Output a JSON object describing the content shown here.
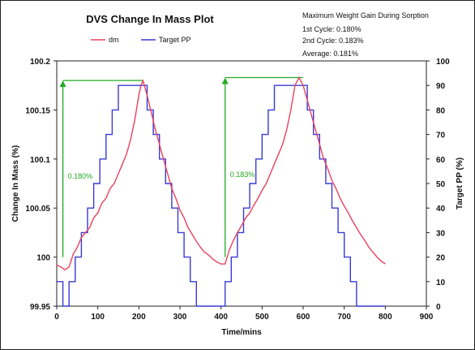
{
  "chart_data": {
    "type": "line",
    "title": "DVS Change In Mass Plot",
    "xlabel": "Time/mins",
    "ylabel_left": "Change In Mass (%)",
    "ylabel_right": "Target PP (%)",
    "xlim": [
      0,
      900
    ],
    "ylim_left": [
      99.95,
      100.2
    ],
    "ylim_right": [
      0,
      100
    ],
    "x_ticks": [
      "0",
      "100",
      "200",
      "300",
      "400",
      "500",
      "600",
      "700",
      "800",
      "900"
    ],
    "y_left_ticks": [
      "99.95",
      "100",
      "100.05",
      "100.1",
      "100.15",
      "100.2"
    ],
    "y_right_ticks": [
      "0",
      "10",
      "20",
      "30",
      "40",
      "50",
      "60",
      "70",
      "80",
      "90",
      "100"
    ],
    "legend": {
      "position": "top-left"
    },
    "colors": {
      "dm": "#e8415f",
      "target": "#3a3ad6",
      "annotation": "#22aa22"
    },
    "info_lines": [
      "Maximum Weight Gain During Sorption",
      "1st Cycle: 0.180%",
      "2nd Cycle: 0.183%",
      "Average: 0.181%"
    ],
    "annotations": [
      {
        "label": "0.180%",
        "x": 15,
        "y_low": 100.0,
        "y_high": 100.18
      },
      {
        "label": "0.183%",
        "x": 410,
        "y_low": 100.0,
        "y_high": 100.183
      }
    ],
    "series": [
      {
        "name": "dm",
        "axis": "left",
        "x": [
          0,
          10,
          20,
          30,
          40,
          50,
          60,
          70,
          80,
          90,
          100,
          110,
          120,
          130,
          140,
          150,
          160,
          170,
          180,
          190,
          200,
          205,
          210,
          220,
          230,
          240,
          250,
          260,
          270,
          280,
          290,
          300,
          310,
          320,
          330,
          340,
          350,
          360,
          370,
          380,
          390,
          400,
          410,
          420,
          430,
          440,
          450,
          460,
          470,
          480,
          490,
          500,
          510,
          520,
          530,
          540,
          550,
          560,
          570,
          580,
          590,
          600,
          610,
          620,
          630,
          640,
          650,
          660,
          670,
          680,
          690,
          700,
          710,
          720,
          730,
          740,
          750,
          760,
          770,
          780,
          790,
          800
        ],
        "y": [
          99.992,
          99.99,
          99.987,
          99.99,
          100.003,
          100.01,
          100.02,
          100.025,
          100.03,
          100.04,
          100.045,
          100.055,
          100.06,
          100.07,
          100.075,
          100.085,
          100.095,
          100.105,
          100.12,
          100.14,
          100.165,
          100.175,
          100.18,
          100.165,
          100.148,
          100.13,
          100.115,
          100.1,
          100.085,
          100.07,
          100.06,
          100.048,
          100.04,
          100.03,
          100.023,
          100.016,
          100.01,
          100.005,
          100.002,
          99.998,
          99.995,
          99.993,
          99.993,
          100.007,
          100.017,
          100.025,
          100.032,
          100.04,
          100.045,
          100.053,
          100.06,
          100.068,
          100.075,
          100.085,
          100.095,
          100.105,
          100.115,
          100.13,
          100.15,
          100.175,
          100.183,
          100.175,
          100.16,
          100.145,
          100.13,
          100.115,
          100.1,
          100.09,
          100.078,
          100.07,
          100.06,
          100.052,
          100.045,
          100.037,
          100.03,
          100.023,
          100.017,
          100.01,
          100.005,
          100.0,
          99.996,
          99.993
        ]
      },
      {
        "name": "Target PP",
        "axis": "right",
        "x": [
          0,
          15,
          15,
          30,
          30,
          45,
          45,
          60,
          60,
          75,
          75,
          90,
          90,
          105,
          105,
          120,
          120,
          135,
          135,
          150,
          150,
          165,
          165,
          180,
          180,
          195,
          195,
          220,
          220,
          235,
          235,
          250,
          250,
          265,
          265,
          280,
          280,
          295,
          295,
          310,
          310,
          325,
          325,
          340,
          340,
          355,
          355,
          370,
          370,
          385,
          385,
          410,
          410,
          425,
          425,
          440,
          440,
          455,
          455,
          470,
          470,
          485,
          485,
          500,
          500,
          515,
          515,
          530,
          530,
          545,
          545,
          560,
          560,
          575,
          575,
          590,
          590,
          610,
          610,
          625,
          625,
          640,
          640,
          655,
          655,
          670,
          670,
          685,
          685,
          700,
          700,
          715,
          715,
          730,
          730,
          745,
          745,
          760,
          760,
          775,
          775,
          800
        ],
        "y": [
          10,
          10,
          0,
          0,
          10,
          10,
          20,
          20,
          30,
          30,
          40,
          40,
          50,
          50,
          60,
          60,
          70,
          70,
          80,
          80,
          90,
          90,
          90,
          90,
          90,
          90,
          90,
          90,
          80,
          80,
          70,
          70,
          60,
          60,
          50,
          50,
          40,
          40,
          30,
          30,
          20,
          20,
          10,
          10,
          0,
          0,
          0,
          0,
          0,
          0,
          0,
          0,
          10,
          10,
          20,
          20,
          30,
          30,
          40,
          40,
          50,
          50,
          60,
          60,
          70,
          70,
          80,
          80,
          90,
          90,
          90,
          90,
          90,
          90,
          90,
          90,
          90,
          90,
          80,
          80,
          70,
          70,
          60,
          60,
          50,
          50,
          40,
          40,
          30,
          30,
          20,
          20,
          10,
          10,
          0,
          0,
          0,
          0,
          0,
          0,
          0,
          0
        ]
      }
    ]
  }
}
